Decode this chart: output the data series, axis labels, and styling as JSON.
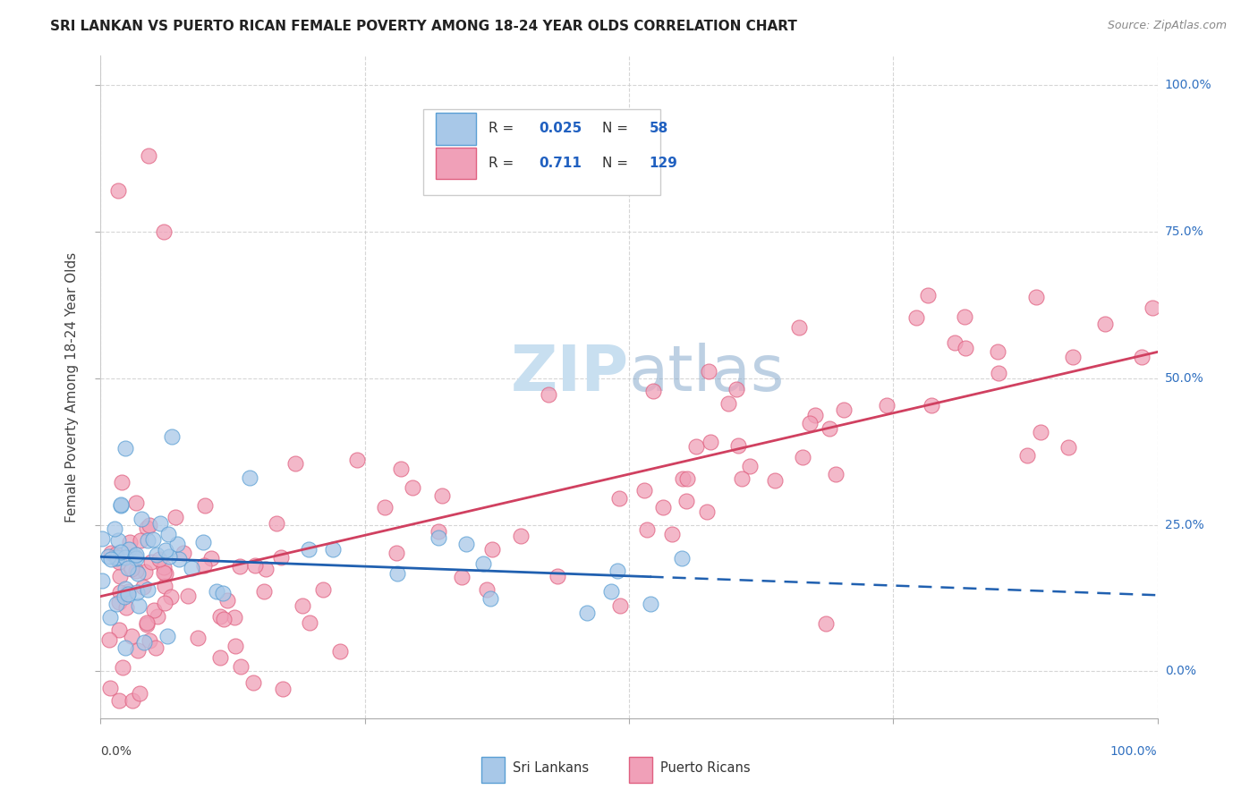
{
  "title": "SRI LANKAN VS PUERTO RICAN FEMALE POVERTY AMONG 18-24 YEAR OLDS CORRELATION CHART",
  "source": "Source: ZipAtlas.com",
  "ylabel": "Female Poverty Among 18-24 Year Olds",
  "sl_color": "#a8c8e8",
  "sl_edge_color": "#5a9fd4",
  "sl_line_color": "#2060b0",
  "pr_color": "#f0a0b8",
  "pr_edge_color": "#e06080",
  "pr_line_color": "#d04060",
  "background_color": "#ffffff",
  "grid_color": "#cccccc",
  "text_color_blue": "#2060c0",
  "watermark_color": "#c8dff0",
  "right_tick_color": "#3070c0",
  "sl_R": "0.025",
  "sl_N": "58",
  "pr_R": "0.711",
  "pr_N": "129",
  "sl_label": "Sri Lankans",
  "pr_label": "Puerto Ricans"
}
